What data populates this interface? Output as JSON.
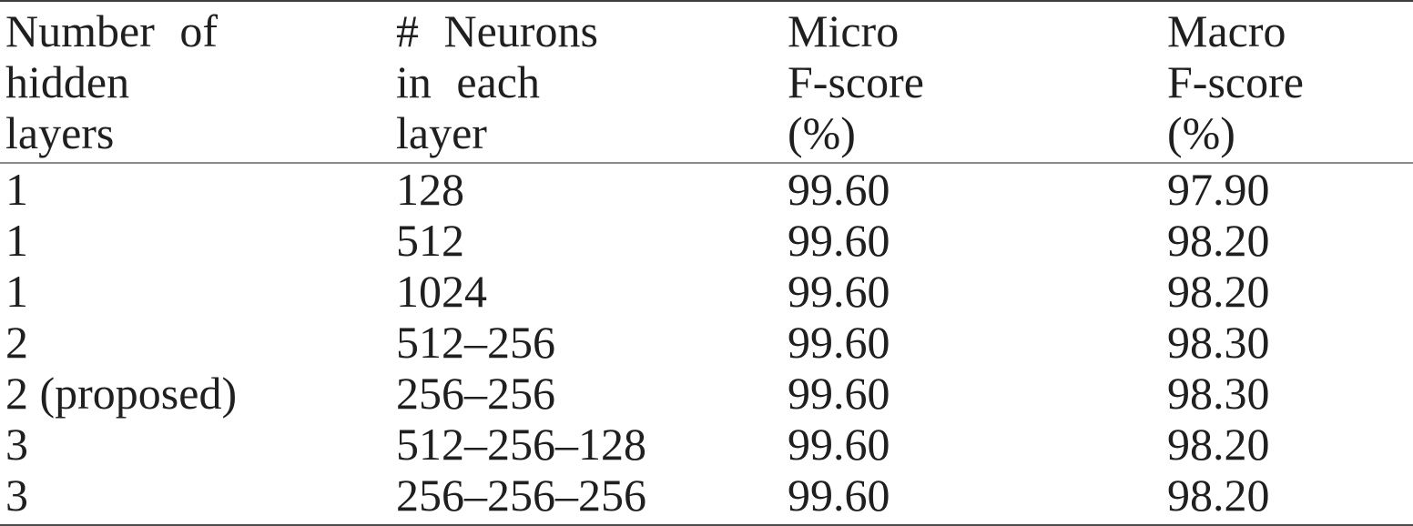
{
  "table": {
    "columns": [
      {
        "id": "hidden-layers",
        "lines": [
          "Number of",
          "hidden",
          "layers"
        ]
      },
      {
        "id": "neurons-per-layer",
        "lines": [
          "# Neurons",
          "in each",
          "layer"
        ]
      },
      {
        "id": "micro-fscore",
        "lines": [
          "Micro",
          "F-score",
          "(%)"
        ]
      },
      {
        "id": "macro-fscore",
        "lines": [
          "Macro",
          "F-score",
          "(%)"
        ]
      }
    ],
    "rows": [
      [
        "1",
        "128",
        "99.60",
        "97.90"
      ],
      [
        "1",
        "512",
        "99.60",
        "98.20"
      ],
      [
        "1",
        "1024",
        "99.60",
        "98.20"
      ],
      [
        "2",
        "512–256",
        "99.60",
        "98.30"
      ],
      [
        "2 (proposed)",
        "256–256",
        "99.60",
        "98.30"
      ],
      [
        "3",
        "512–256–128",
        "99.60",
        "98.20"
      ],
      [
        "3",
        "256–256–256",
        "99.60",
        "98.20"
      ]
    ]
  },
  "colors": {
    "text": "#1f1f1f",
    "rule_top": "#3d3d3d",
    "rule_header": "#8a8a8a",
    "rule_bottom": "#4c4c4c",
    "background": "#ffffff"
  }
}
